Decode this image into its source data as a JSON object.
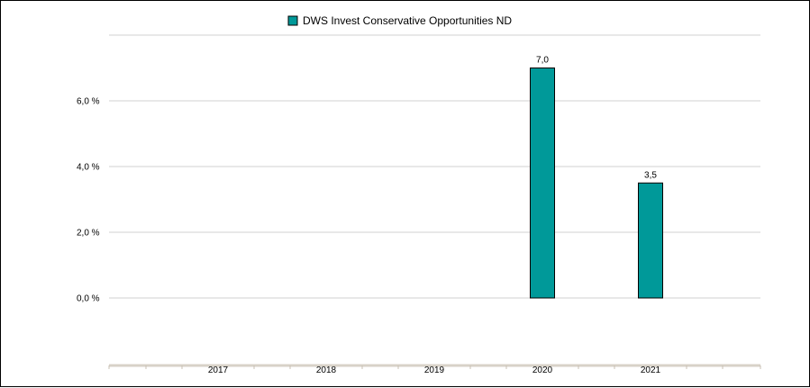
{
  "chart_data": {
    "type": "bar",
    "categories": [
      "2017",
      "2018",
      "2019",
      "2020",
      "2021"
    ],
    "series": [
      {
        "name": "DWS Invest Conservative Opportunities  ND",
        "values": [
          null,
          null,
          null,
          7.0,
          3.5
        ],
        "value_labels": [
          "",
          "",
          "",
          "7,0",
          "3,5"
        ],
        "color": "#009999"
      }
    ],
    "y_ticks": [
      {
        "value": 0,
        "label": "0,0 %"
      },
      {
        "value": 2,
        "label": "2,0 %"
      },
      {
        "value": 4,
        "label": "4,0 %"
      },
      {
        "value": 6,
        "label": "6,0 %"
      }
    ],
    "ylim": [
      -2,
      8
    ],
    "grid": true,
    "legend_position": "top-center",
    "title": "",
    "xlabel": "",
    "ylabel": ""
  }
}
